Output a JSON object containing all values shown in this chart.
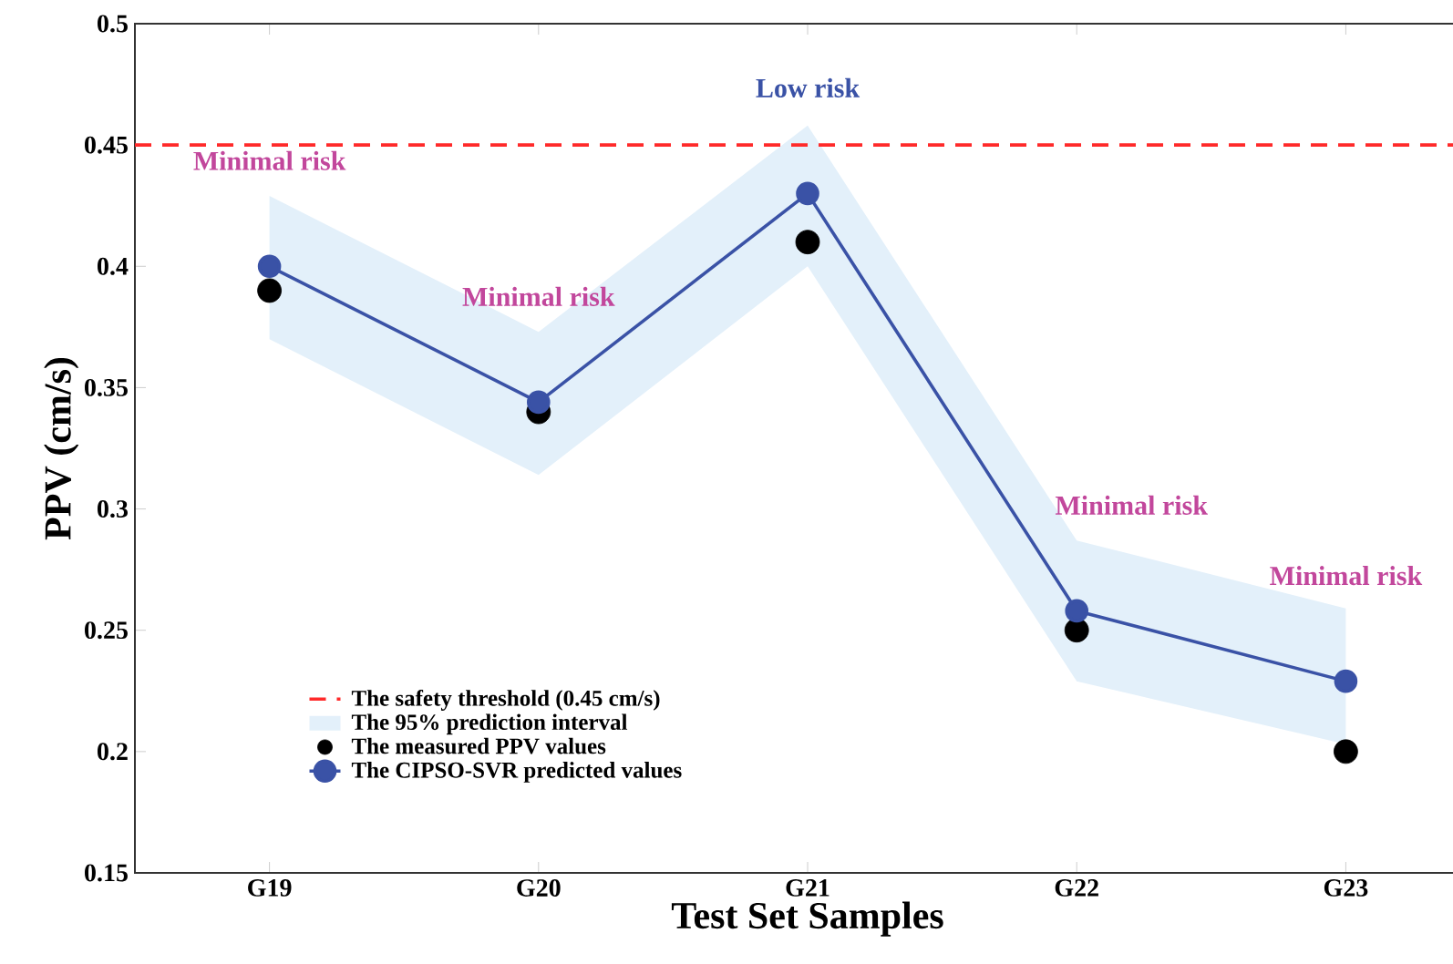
{
  "chart_data": {
    "type": "line",
    "xlabel": "Test Set Samples",
    "ylabel": "PPV (cm/s)",
    "categories": [
      "G19",
      "G20",
      "G21",
      "G22",
      "G23"
    ],
    "series": [
      {
        "type": "scatter",
        "name": "The measured PPV values",
        "color": "#000000",
        "values": [
          0.39,
          0.34,
          0.41,
          0.25,
          0.2
        ]
      },
      {
        "name": "The CIPSO-SVR predicted values",
        "color": "#3a52a6",
        "values": [
          0.4,
          0.344,
          0.43,
          0.258,
          0.229
        ],
        "lower": [
          0.37,
          0.314,
          0.4,
          0.229,
          0.203
        ],
        "upper": [
          0.429,
          0.373,
          0.458,
          0.287,
          0.259
        ]
      }
    ],
    "ref_lines": [
      {
        "axis": "y",
        "value": 0.45,
        "label": "The safety threshold (0.45 cm/s)",
        "color": "#ff2a2a",
        "line_style": "dashed"
      }
    ],
    "annotations": [
      "Minimal risk",
      "Minimal risk",
      "Low risk",
      "Minimal risk",
      "Minimal risk",
      "The 95% prediction interval"
    ],
    "ylim": [
      0.15,
      0.5
    ],
    "yticks": [
      0.15,
      0.2,
      0.25,
      0.3,
      0.35,
      0.4,
      0.45,
      0.5
    ],
    "marker": "circle",
    "legend": "bottom left",
    "grid": false
  }
}
